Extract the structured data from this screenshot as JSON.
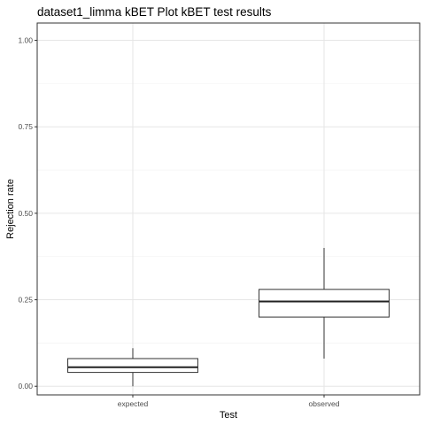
{
  "chart_data": {
    "type": "box",
    "title": "dataset1_limma kBET Plot kBET test results",
    "xlabel": "Test",
    "ylabel": "Rejection rate",
    "categories": [
      "expected",
      "observed"
    ],
    "ylim": [
      -0.025,
      1.05
    ],
    "yticks": [
      0.0,
      0.25,
      0.5,
      0.75,
      1.0
    ],
    "ytick_labels": [
      "0.00",
      "0.25",
      "0.50",
      "0.75",
      "1.00"
    ],
    "grid": true,
    "legend": "none",
    "boxes": [
      {
        "category": "expected",
        "min": 0.0,
        "q1": 0.04,
        "median": 0.055,
        "q3": 0.08,
        "max": 0.11
      },
      {
        "category": "observed",
        "min": 0.08,
        "q1": 0.2,
        "median": 0.245,
        "q3": 0.28,
        "max": 0.4
      }
    ]
  }
}
